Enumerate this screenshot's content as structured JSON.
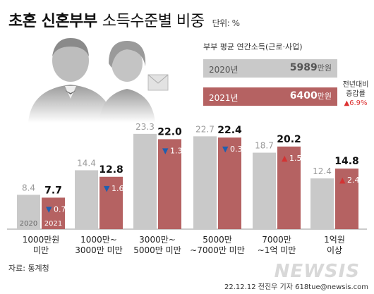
{
  "title": {
    "bold": "초혼 신혼부부",
    "light": "소득수준별 비중",
    "unit": "단위: %"
  },
  "income_box": {
    "heading": "부부 평균 연간소득(근로·사업)",
    "y2020": {
      "year": "2020년",
      "value": "5989",
      "unit": "만원"
    },
    "y2021": {
      "year": "2021년",
      "value": "6400",
      "unit": "만원"
    },
    "growth_label_1": "전년대비",
    "growth_label_2": "증감률",
    "growth_value": "6.9%"
  },
  "source": "자료: 통계청",
  "credit": "22.12.12 전진우 기자 618tue@newsis.com",
  "logo": "NEWSIS",
  "colors": {
    "bar2020": "#c9c9c9",
    "bar2021": "#b56262",
    "up": "#d33333",
    "down": "#1f5fb0"
  },
  "chart_data": {
    "type": "bar",
    "categories": [
      "1000만원\n미만",
      "1000만~\n3000만 미만",
      "3000만~\n5000만 미만",
      "5000만\n~7000만 미만",
      "7000만\n~1억 미만",
      "1억원\n이상"
    ],
    "series": [
      {
        "name": "2020",
        "values": [
          8.4,
          14.4,
          23.3,
          22.7,
          18.7,
          12.4
        ]
      },
      {
        "name": "2021",
        "values": [
          7.7,
          12.8,
          22.0,
          22.4,
          20.2,
          14.8
        ]
      }
    ],
    "change": [
      {
        "dir": "down",
        "value": "0.7"
      },
      {
        "dir": "down",
        "value": "1.6"
      },
      {
        "dir": "down",
        "value": "1.3"
      },
      {
        "dir": "down",
        "value": "0.3"
      },
      {
        "dir": "up",
        "value": "1.5"
      },
      {
        "dir": "up",
        "value": "2.4"
      }
    ],
    "series_labels_in_first_group": [
      "2020",
      "2021"
    ]
  }
}
